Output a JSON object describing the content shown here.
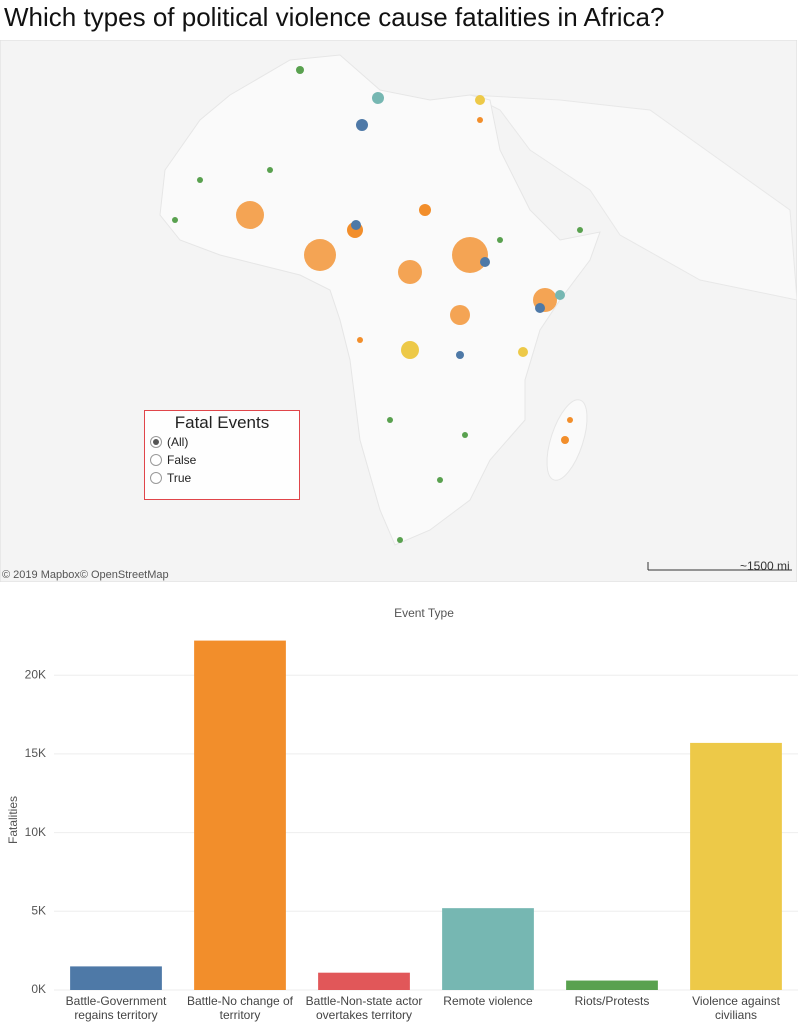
{
  "title": "Which types of political violence cause fatalities in Africa?",
  "map": {
    "attribution": "© 2019 Mapbox© OpenStreetMap",
    "scale": "~1500 mi"
  },
  "filter": {
    "title": "Fatal Events",
    "options": [
      "(All)",
      "False",
      "True"
    ]
  },
  "chart_data": {
    "type": "bar",
    "x_label": "Event Type",
    "y_label": "Fatalities",
    "categories": [
      "Battle-Government regains territory",
      "Battle-No change of territory",
      "Battle-Non-state actor overtakes territory",
      "Remote violence",
      "Riots/Protests",
      "Violence against civilians"
    ],
    "values": [
      1500,
      22200,
      1100,
      5200,
      600,
      15700
    ],
    "colors": [
      "#4e79a7",
      "#f28e2b",
      "#e15759",
      "#76b7b2",
      "#59a14f",
      "#edc948"
    ],
    "ylim": [
      0,
      23000
    ],
    "yticks": [
      {
        "value": 0,
        "label": "0K"
      },
      {
        "value": 5000,
        "label": "5K"
      },
      {
        "value": 10000,
        "label": "10K"
      },
      {
        "value": 15000,
        "label": "15K"
      },
      {
        "value": 20000,
        "label": "20K"
      }
    ],
    "grid": true
  }
}
